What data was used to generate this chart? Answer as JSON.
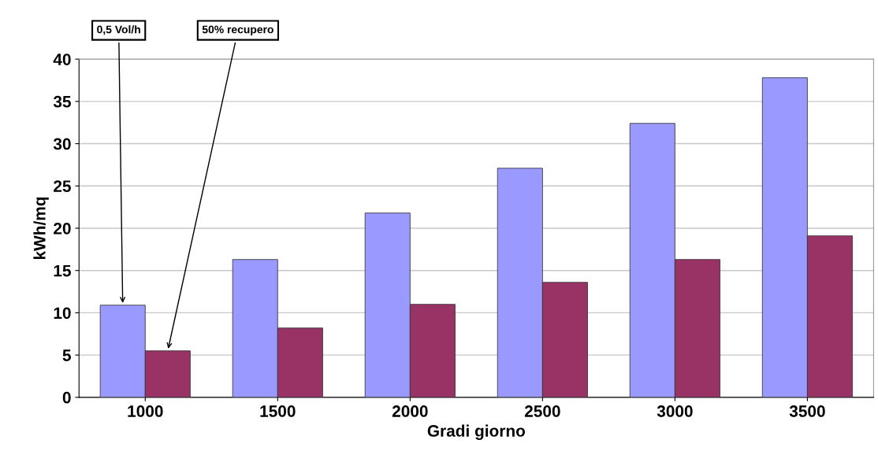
{
  "chart_data": {
    "type": "bar",
    "xlabel": "Gradi giorno",
    "ylabel": "kWh/mq",
    "categories": [
      "1000",
      "1500",
      "2000",
      "2500",
      "3000",
      "3500"
    ],
    "series": [
      {
        "color": "#9999ff",
        "values": [
          10.9,
          16.3,
          21.8,
          27.1,
          32.4,
          37.8
        ]
      },
      {
        "color": "#993366",
        "values": [
          5.5,
          8.2,
          11.0,
          13.6,
          16.3,
          19.1
        ]
      }
    ],
    "ylim": [
      0,
      40
    ],
    "yticks": [
      0,
      5,
      10,
      15,
      20,
      25,
      30,
      35,
      40
    ],
    "grid": "y",
    "legend": false,
    "annotations": [
      "0,5 Vol/h",
      "50% recupero"
    ]
  }
}
